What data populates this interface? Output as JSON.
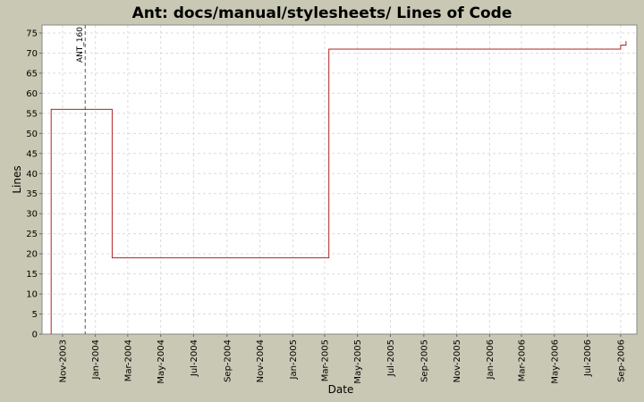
{
  "chart_data": {
    "type": "line",
    "step": true,
    "title": "Ant: docs/manual/stylesheets/ Lines of Code",
    "xlabel": "Date",
    "ylabel": "Lines",
    "xlim": [
      "2003-09-24",
      "2006-10-01"
    ],
    "ylim": [
      0,
      77
    ],
    "y_ticks": [
      0,
      5,
      10,
      15,
      20,
      25,
      30,
      35,
      40,
      45,
      50,
      55,
      60,
      65,
      70,
      75
    ],
    "x_ticks": [
      {
        "date": "2003-11-01",
        "label": "Nov-2003"
      },
      {
        "date": "2004-01-01",
        "label": "Jan-2004"
      },
      {
        "date": "2004-03-01",
        "label": "Mar-2004"
      },
      {
        "date": "2004-05-01",
        "label": "May-2004"
      },
      {
        "date": "2004-07-01",
        "label": "Jul-2004"
      },
      {
        "date": "2004-09-01",
        "label": "Sep-2004"
      },
      {
        "date": "2004-11-01",
        "label": "Nov-2004"
      },
      {
        "date": "2005-01-01",
        "label": "Jan-2005"
      },
      {
        "date": "2005-03-01",
        "label": "Mar-2005"
      },
      {
        "date": "2005-05-01",
        "label": "May-2005"
      },
      {
        "date": "2005-07-01",
        "label": "Jul-2005"
      },
      {
        "date": "2005-09-01",
        "label": "Sep-2005"
      },
      {
        "date": "2005-11-01",
        "label": "Nov-2005"
      },
      {
        "date": "2006-01-01",
        "label": "Jan-2006"
      },
      {
        "date": "2006-03-01",
        "label": "Mar-2006"
      },
      {
        "date": "2006-05-01",
        "label": "May-2006"
      },
      {
        "date": "2006-07-01",
        "label": "Jul-2006"
      },
      {
        "date": "2006-09-01",
        "label": "Sep-2006"
      }
    ],
    "grid": true,
    "series": [
      {
        "color": "#b22222",
        "points": [
          {
            "x": "2003-10-11",
            "y": 0
          },
          {
            "x": "2003-10-11",
            "y": 56
          },
          {
            "x": "2004-02-01",
            "y": 56
          },
          {
            "x": "2004-02-01",
            "y": 19
          },
          {
            "x": "2005-03-09",
            "y": 19
          },
          {
            "x": "2005-03-09",
            "y": 71
          },
          {
            "x": "2006-09-01",
            "y": 71
          },
          {
            "x": "2006-09-01",
            "y": 72
          },
          {
            "x": "2006-09-11",
            "y": 72
          },
          {
            "x": "2006-09-11",
            "y": 73
          }
        ]
      }
    ],
    "markers": [
      {
        "date": "2003-12-13",
        "label": "ANT_160"
      }
    ]
  },
  "colors": {
    "background": "#c8c8b4",
    "plot_background": "#ffffff",
    "grid": "#dcdcdc",
    "line": "#b22222",
    "marker": "#555555"
  }
}
